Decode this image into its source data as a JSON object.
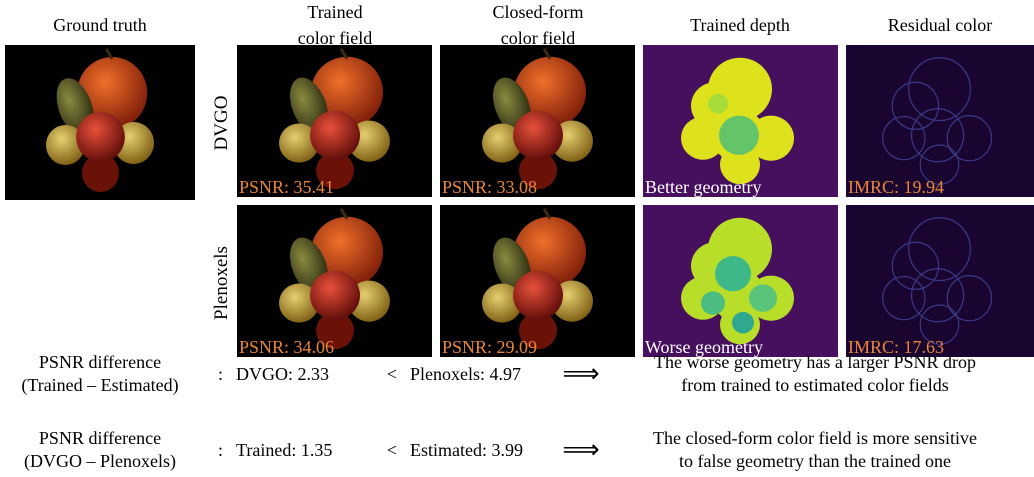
{
  "columns": [
    [
      "Ground truth"
    ],
    [
      "Trained",
      "color field"
    ],
    [
      "Closed-form",
      "color field"
    ],
    [
      "Trained depth"
    ],
    [
      "Residual color"
    ]
  ],
  "rows": [
    {
      "label": "DVGO",
      "overlays": [
        "PSNR: 35.41",
        "PSNR: 33.08",
        "Better geometry",
        "IMRC: 19.94"
      ]
    },
    {
      "label": "Plenoxels",
      "overlays": [
        "PSNR: 34.06",
        "PSNR: 29.09",
        "Worse geometry",
        "IMRC: 17.63"
      ]
    }
  ],
  "summary": [
    {
      "label": [
        "PSNR difference",
        "(Trained – Estimated)"
      ],
      "sep": ":",
      "left": "DVGO: 2.33",
      "op": "<",
      "right": "Plenoxels: 4.97",
      "arrow": "⟹",
      "conclusion": [
        "The worse geometry has a larger PSNR drop",
        "from trained to estimated color fields"
      ]
    },
    {
      "label": [
        "PSNR difference",
        "(DVGO – Plenoxels)"
      ],
      "sep": ":",
      "left": "Trained: 1.35",
      "op": "<",
      "right": "Estimated: 3.99",
      "arrow": "⟹",
      "conclusion": [
        "The closed-form color field is more sensitive",
        "to false geometry than the trained one"
      ]
    }
  ]
}
